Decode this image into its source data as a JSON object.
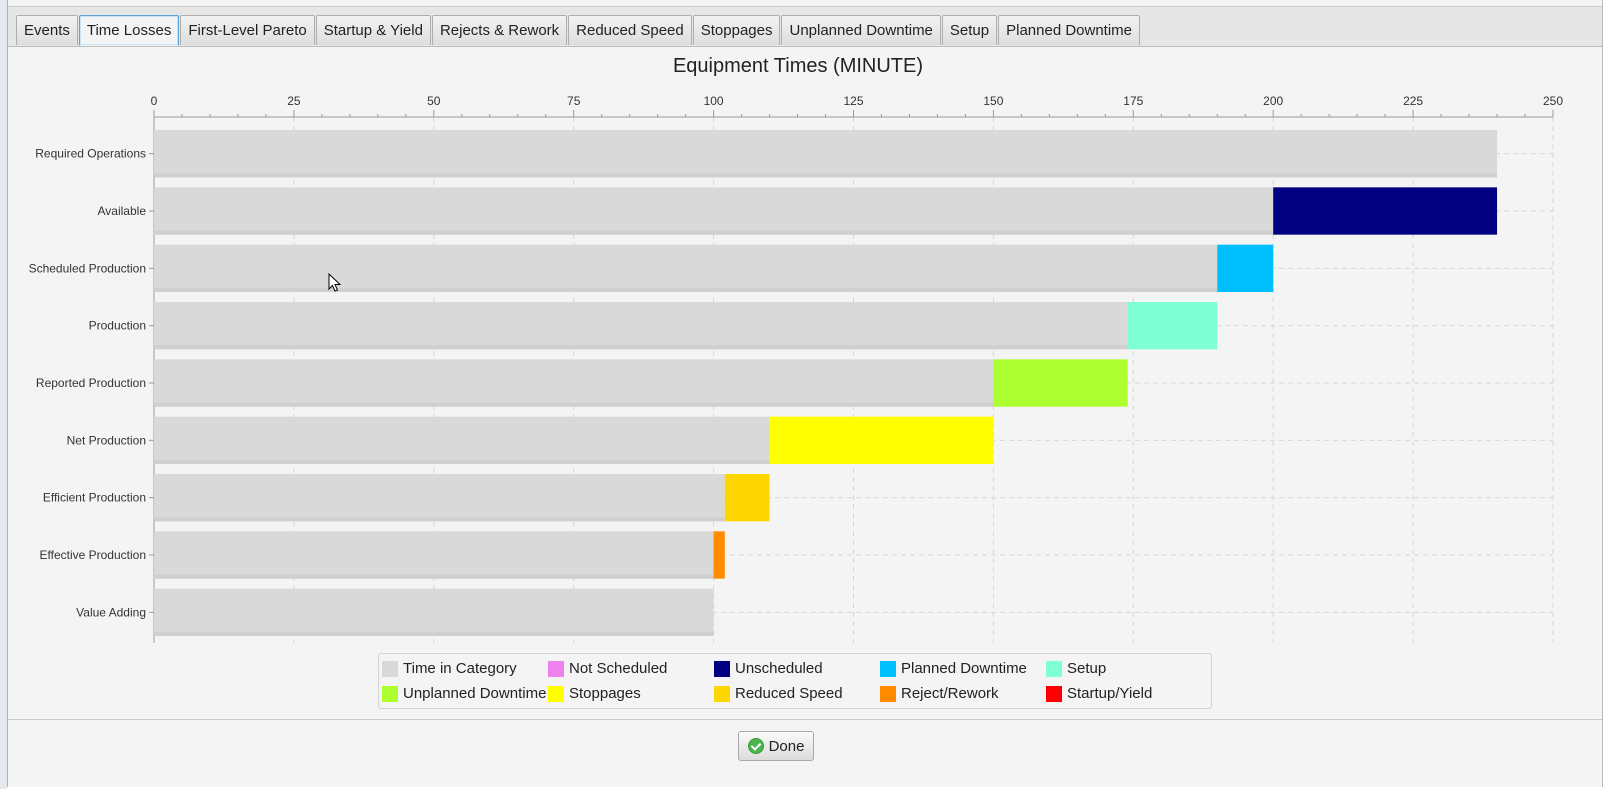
{
  "tabs": [
    {
      "label": "Events",
      "selected": false
    },
    {
      "label": "Time Losses",
      "selected": true
    },
    {
      "label": "First-Level Pareto",
      "selected": false
    },
    {
      "label": "Startup & Yield",
      "selected": false
    },
    {
      "label": "Rejects & Rework",
      "selected": false
    },
    {
      "label": "Reduced Speed",
      "selected": false
    },
    {
      "label": "Stoppages",
      "selected": false
    },
    {
      "label": "Unplanned Downtime",
      "selected": false
    },
    {
      "label": "Setup",
      "selected": false
    },
    {
      "label": "Planned Downtime",
      "selected": false
    }
  ],
  "legend": [
    {
      "label": "Time in Category",
      "color": "#d9d9d9"
    },
    {
      "label": "Not Scheduled",
      "color": "#ee82ee"
    },
    {
      "label": "Unscheduled",
      "color": "#000080"
    },
    {
      "label": "Planned Downtime",
      "color": "#00bfff"
    },
    {
      "label": "Setup",
      "color": "#7fffd4"
    },
    {
      "label": "Unplanned Downtime",
      "color": "#adff2f"
    },
    {
      "label": "Stoppages",
      "color": "#ffff00"
    },
    {
      "label": "Reduced Speed",
      "color": "#ffd700"
    },
    {
      "label": "Reject/Rework",
      "color": "#ff8c00"
    },
    {
      "label": "Startup/Yield",
      "color": "#ff0000"
    }
  ],
  "done_label": "Done",
  "chart_data": {
    "type": "bar",
    "orientation": "horizontal",
    "stacked": true,
    "title": "Equipment Times (MINUTE)",
    "xlim": [
      0,
      250
    ],
    "x_ticks": [
      0,
      25,
      50,
      75,
      100,
      125,
      150,
      175,
      200,
      225,
      250
    ],
    "grid": true,
    "legend_position": "bottom",
    "categories": [
      "Required Operations",
      "Available",
      "Scheduled Production",
      "Production",
      "Reported Production",
      "Net Production",
      "Efficient Production",
      "Effective Production",
      "Value Adding"
    ],
    "series": [
      {
        "name": "Time in Category",
        "color": "#d9d9d9",
        "values": [
          240,
          200,
          190,
          174,
          150,
          110,
          102,
          100,
          100
        ]
      },
      {
        "name": "Unscheduled",
        "color": "#000080",
        "values": [
          0,
          40,
          0,
          0,
          0,
          0,
          0,
          0,
          0
        ]
      },
      {
        "name": "Planned Downtime",
        "color": "#00bfff",
        "values": [
          0,
          0,
          10,
          0,
          0,
          0,
          0,
          0,
          0
        ]
      },
      {
        "name": "Setup",
        "color": "#7fffd4",
        "values": [
          0,
          0,
          0,
          16,
          0,
          0,
          0,
          0,
          0
        ]
      },
      {
        "name": "Unplanned Downtime",
        "color": "#adff2f",
        "values": [
          0,
          0,
          0,
          0,
          24,
          0,
          0,
          0,
          0
        ]
      },
      {
        "name": "Stoppages",
        "color": "#ffff00",
        "values": [
          0,
          0,
          0,
          0,
          0,
          40,
          0,
          0,
          0
        ]
      },
      {
        "name": "Reduced Speed",
        "color": "#ffd700",
        "values": [
          0,
          0,
          0,
          0,
          0,
          0,
          8,
          0,
          0
        ]
      },
      {
        "name": "Reject/Rework",
        "color": "#ff8c00",
        "values": [
          0,
          0,
          0,
          0,
          0,
          0,
          0,
          2,
          0
        ]
      }
    ]
  }
}
